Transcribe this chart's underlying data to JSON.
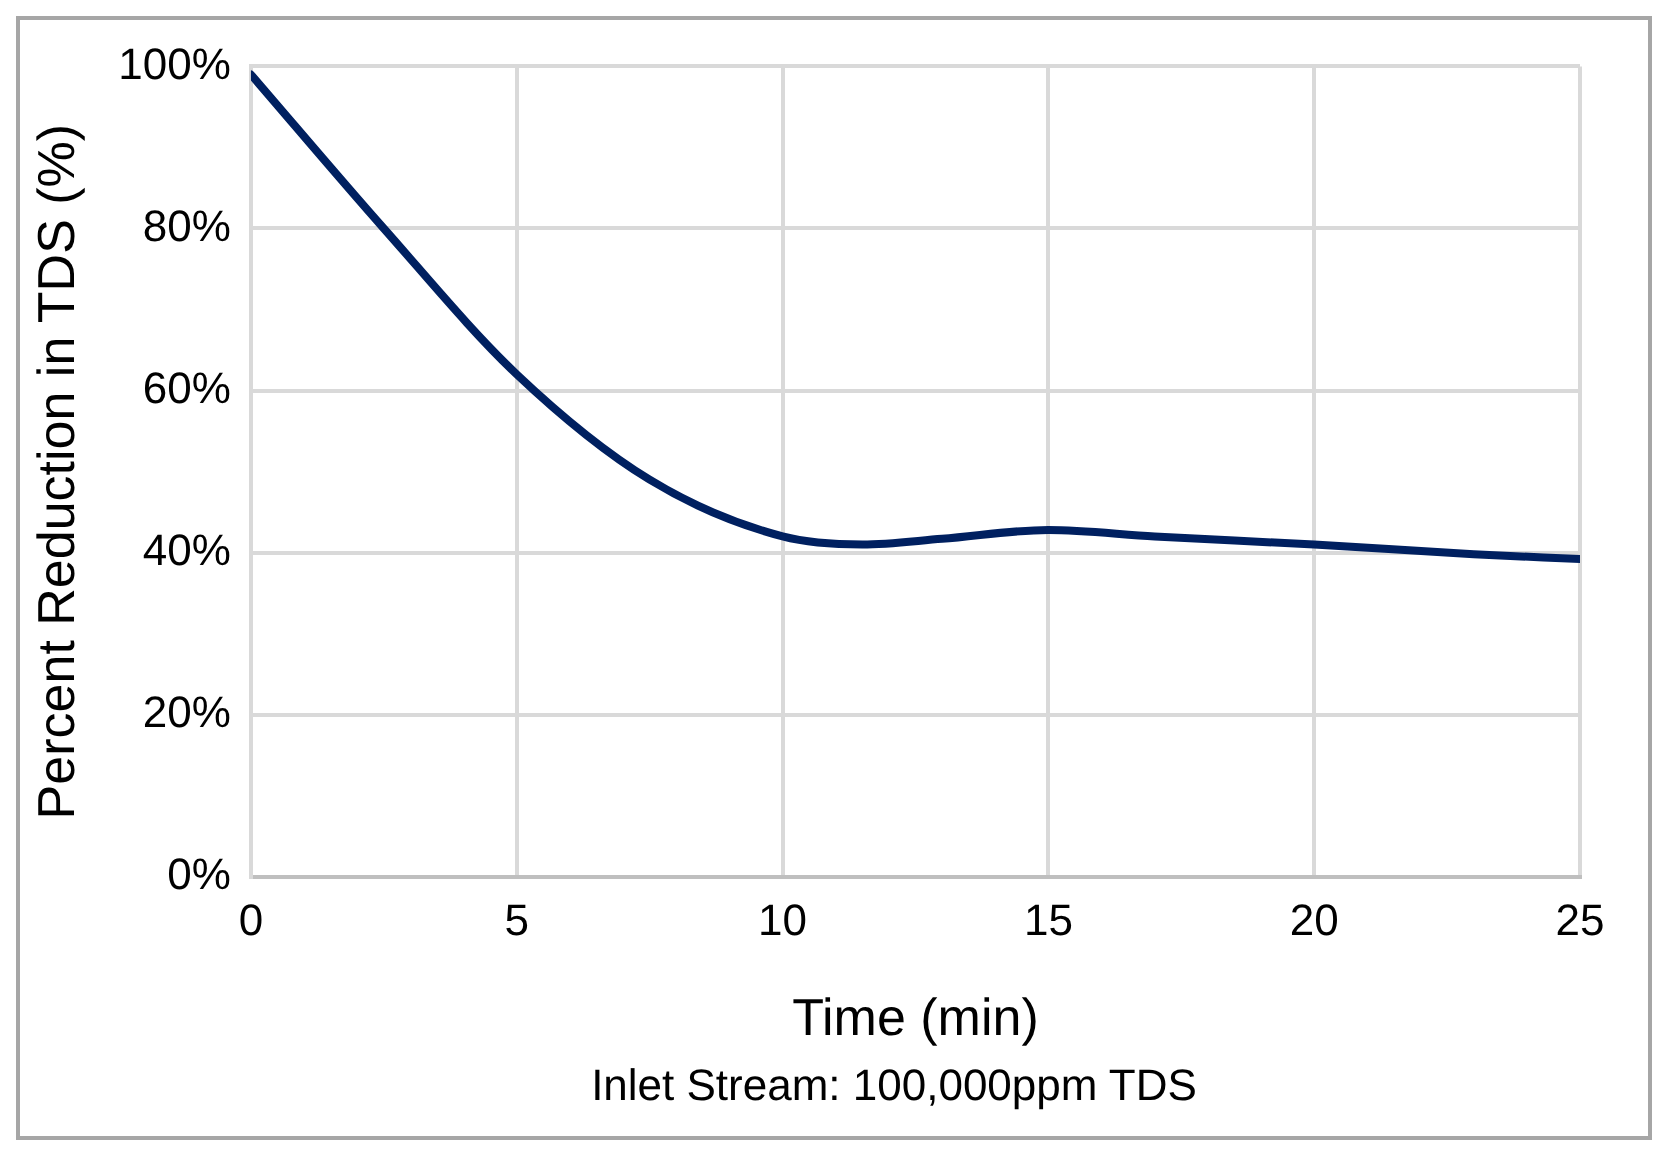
{
  "chart_data": {
    "type": "line",
    "xlabel": "Time (min)",
    "ylabel": "Percent Reduction in TDS (%)",
    "annotations": [
      "Inlet Stream: 100,000ppm TDS"
    ],
    "x": [
      0,
      2.5,
      5,
      7.5,
      10,
      11.5,
      13,
      15,
      17,
      20,
      23,
      25
    ],
    "series": [
      {
        "color": "#002060",
        "values": [
          99,
          80,
          62,
          49,
          42,
          41,
          41.7,
          42.8,
          42,
          41,
          39.8,
          39.2
        ]
      }
    ],
    "xlim": [
      0,
      25
    ],
    "xticks": [
      0,
      5,
      10,
      15,
      20,
      25
    ],
    "ylim": [
      0,
      100
    ],
    "yticks": [
      {
        "value": 0,
        "label": "0%"
      },
      {
        "value": 20,
        "label": "20%"
      },
      {
        "value": 40,
        "label": "40%"
      },
      {
        "value": 60,
        "label": "60%"
      },
      {
        "value": 80,
        "label": "80%"
      },
      {
        "value": 100,
        "label": "100%"
      }
    ],
    "grid": true,
    "legend": false,
    "marker": "none",
    "line_style": "solid"
  }
}
